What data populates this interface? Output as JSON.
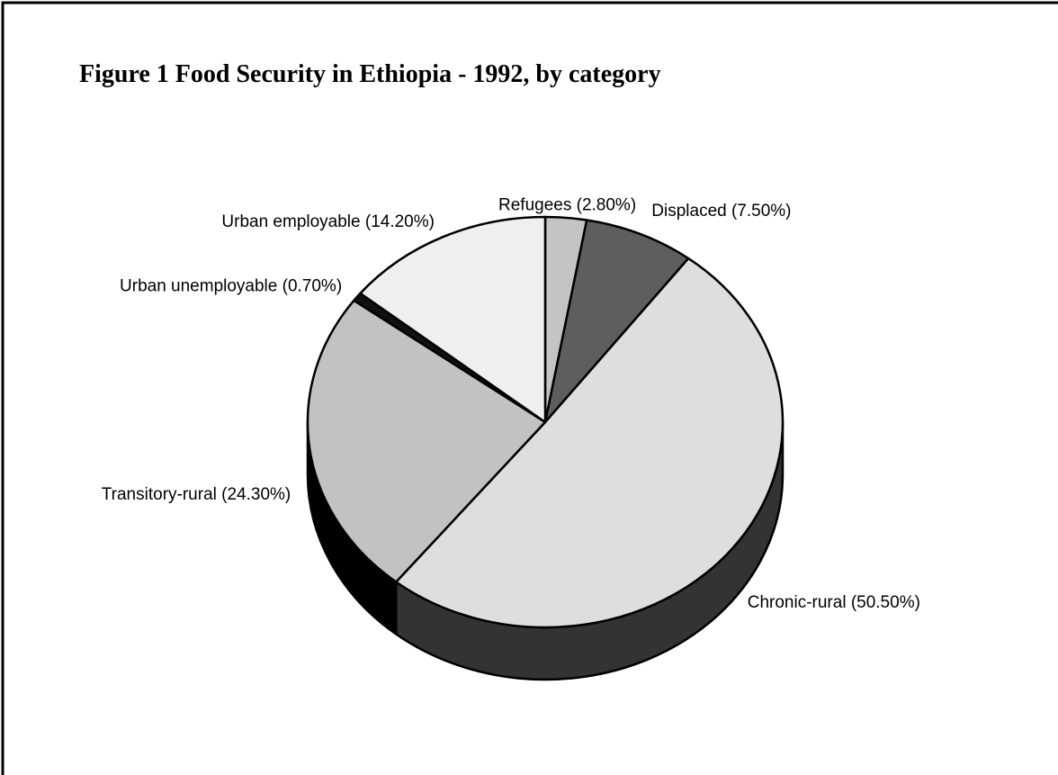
{
  "chart_data": {
    "type": "pie",
    "title": "Figure 1  Food Security in Ethiopia - 1992, by category",
    "style": "3d",
    "slices": [
      {
        "label": "Refugees (2.80%)",
        "category": "Refugees",
        "value": 2.8,
        "color": "#c4c4c4"
      },
      {
        "label": "Displaced (7.50%)",
        "category": "Displaced",
        "value": 7.5,
        "color": "#5e5e5e"
      },
      {
        "label": "Chronic-rural (50.50%)",
        "category": "Chronic-rural",
        "value": 50.5,
        "color": "#dedede"
      },
      {
        "label": "Transitory-rural (24.30%)",
        "category": "Transitory-rural",
        "value": 24.3,
        "color": "#c2c2c2"
      },
      {
        "label": "Urban unemployable (0.70%)",
        "category": "Urban unemployable",
        "value": 0.7,
        "color": "#111111"
      },
      {
        "label": "Urban employable (14.20%)",
        "category": "Urban employable",
        "value": 14.2,
        "color": "#efefef"
      }
    ],
    "side_colors": {
      "light": "#333333",
      "dark": "#000000"
    }
  }
}
